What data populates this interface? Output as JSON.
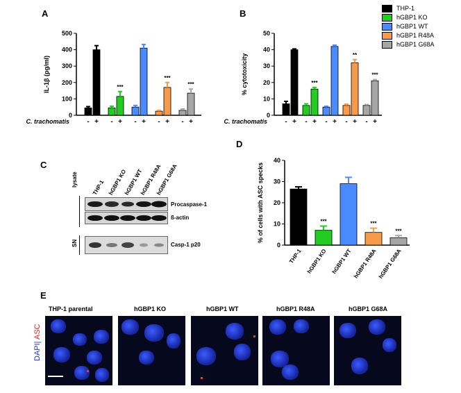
{
  "panels": {
    "A": {
      "label": "A"
    },
    "B": {
      "label": "B"
    },
    "C": {
      "label": "C"
    },
    "D": {
      "label": "D"
    },
    "E": {
      "label": "E"
    }
  },
  "legend": {
    "items": [
      {
        "label": "THP-1",
        "color": "#000000"
      },
      {
        "label": "hGBP1 KO",
        "color": "#22cc22"
      },
      {
        "label": "hGBP1 WT",
        "color": "#4a8cff"
      },
      {
        "label": "hGBP1 R48A",
        "color": "#f79a4a"
      },
      {
        "label": "hGBP1 G68A",
        "color": "#a6a6a6"
      }
    ]
  },
  "chart_data": [
    {
      "panel": "A",
      "type": "bar",
      "ylabel": "IL-1β (pg/ml)",
      "xlabel": "C. trachomatis",
      "ylim": [
        0,
        500
      ],
      "yticks": [
        0,
        100,
        200,
        300,
        400,
        500
      ],
      "groups": [
        "THP-1",
        "hGBP1 KO",
        "hGBP1 WT",
        "hGBP1 R48A",
        "hGBP1 G68A"
      ],
      "conditions": [
        "-",
        "+"
      ],
      "values": [
        [
          45,
          400
        ],
        [
          45,
          115
        ],
        [
          50,
          410
        ],
        [
          25,
          170
        ],
        [
          30,
          135
        ]
      ],
      "errors": [
        [
          8,
          25
        ],
        [
          10,
          30
        ],
        [
          10,
          22
        ],
        [
          5,
          30
        ],
        [
          8,
          25
        ]
      ],
      "significance": [
        "",
        "***",
        "",
        "***",
        "***"
      ]
    },
    {
      "panel": "B",
      "type": "bar",
      "ylabel": "% cytotoxicity",
      "xlabel": "C. trachomatis",
      "ylim": [
        0,
        50
      ],
      "yticks": [
        0,
        10,
        20,
        30,
        40,
        50
      ],
      "groups": [
        "THP-1",
        "hGBP1 KO",
        "hGBP1 WT",
        "hGBP1 R48A",
        "hGBP1 G68A"
      ],
      "conditions": [
        "-",
        "+"
      ],
      "values": [
        [
          7,
          40
        ],
        [
          6,
          16
        ],
        [
          5,
          42
        ],
        [
          6,
          32
        ],
        [
          6,
          21
        ]
      ],
      "errors": [
        [
          1.5,
          0.5
        ],
        [
          1,
          1
        ],
        [
          0.5,
          0.8
        ],
        [
          0.8,
          2
        ],
        [
          0.5,
          0.8
        ]
      ],
      "significance": [
        "",
        "***",
        "",
        "**",
        "***"
      ]
    },
    {
      "panel": "D",
      "type": "bar",
      "ylabel": "% of cells with ASC specks",
      "ylim": [
        0,
        40
      ],
      "yticks": [
        0,
        10,
        20,
        30,
        40
      ],
      "categories": [
        "THP-1",
        "hGBP1 KO",
        "hGBP1 WT",
        "hGBP1 R48A",
        "hGBP1 G68A"
      ],
      "values": [
        26.5,
        7,
        29,
        6,
        3.5
      ],
      "errors": [
        1,
        2,
        3,
        2,
        1
      ],
      "significance": [
        "",
        "***",
        "",
        "***",
        "***"
      ]
    }
  ],
  "blot": {
    "lanes": [
      "THP-1",
      "hGBP1 KO",
      "hGBP1 WT",
      "hGBP1 R48A",
      "hGBP1 G68A"
    ],
    "group_lysate": "lysate",
    "group_sn": "SN",
    "bands": [
      "Procaspase-1",
      "ß-actin",
      "Casp-1 p20"
    ]
  },
  "microscopy": {
    "stain_dapi": "DAPI",
    "stain_asc": "ASC",
    "panels": [
      "THP-1 parental",
      "hGBP1 KO",
      "hGBP1 WT",
      "hGBP1 R48A",
      "hGBP1 G68A"
    ]
  }
}
